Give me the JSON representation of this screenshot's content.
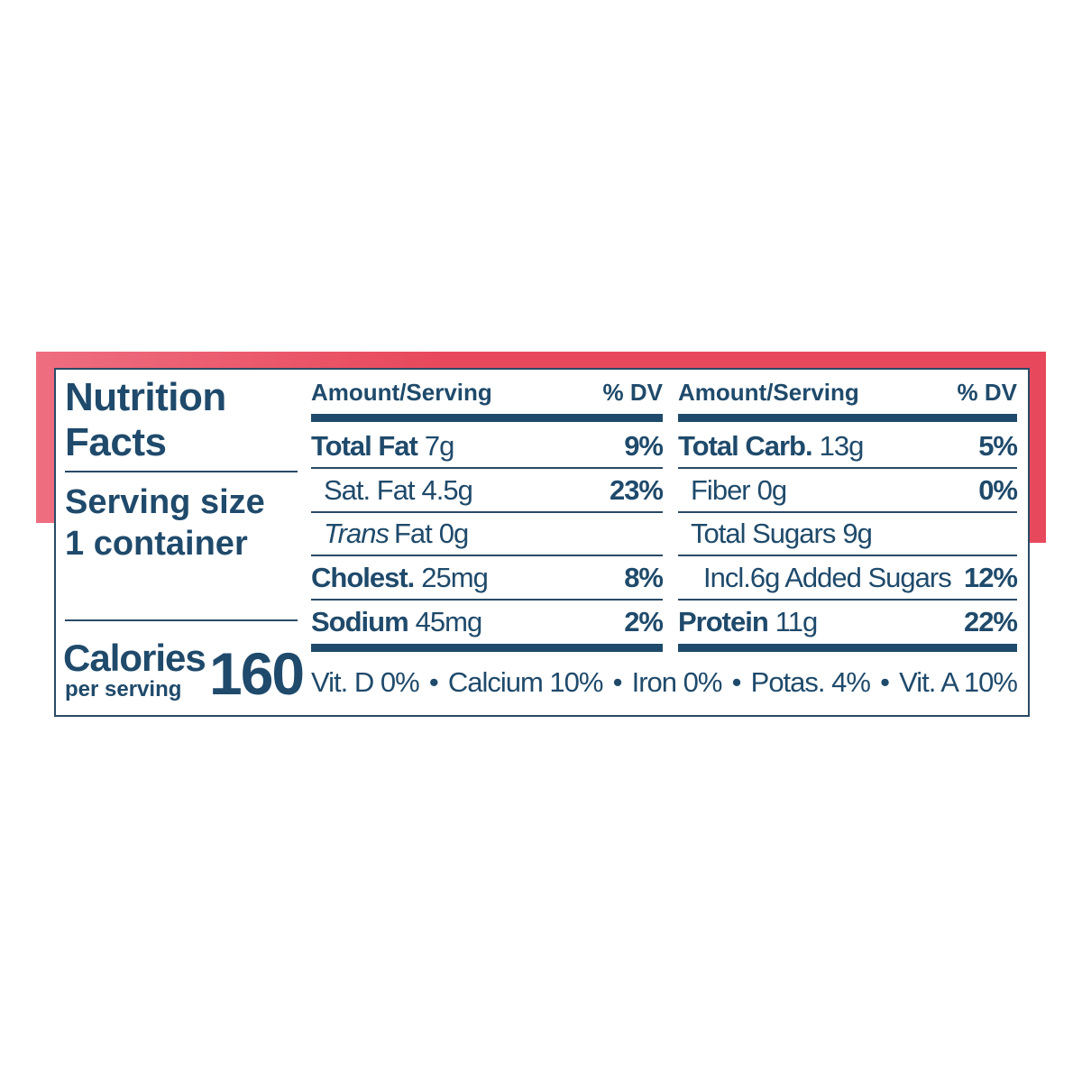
{
  "title": "Nutrition Facts",
  "serving_label": "Serving size",
  "serving_amount": "1 container",
  "calories_label": "Calories",
  "calories_sub": "per serving",
  "calories": "160",
  "left": {
    "amount_header": "Amount/Serving",
    "dv_header": "% DV",
    "rows": [
      {
        "label": "Total Fat",
        "amount": "7g",
        "dv": "9%"
      },
      {
        "label": "Sat. Fat",
        "amount": "4.5g",
        "dv": "23%"
      },
      {
        "label_italic": "Trans",
        "label": "Fat",
        "amount": "0g"
      },
      {
        "label": "Cholest.",
        "amount": "25mg",
        "dv": "8%"
      },
      {
        "label": "Sodium",
        "amount": "45mg",
        "dv": "2%"
      }
    ]
  },
  "right": {
    "amount_header": "Amount/Serving",
    "dv_header": "% DV",
    "rows": [
      {
        "label": "Total Carb.",
        "amount": "13g",
        "dv": "5%"
      },
      {
        "label": "Fiber",
        "amount": "0g",
        "dv": "0%"
      },
      {
        "label": "Total Sugars",
        "amount": "9g"
      },
      {
        "label": "Incl.6g Added Sugars",
        "dv": "12%"
      },
      {
        "label": "Protein",
        "amount": "11g",
        "dv": "22%"
      }
    ]
  },
  "vitamins": [
    "Vit. D 0%",
    "Calcium 10%",
    "Iron 0%",
    "Potas. 4%",
    "Vit. A 10%"
  ]
}
